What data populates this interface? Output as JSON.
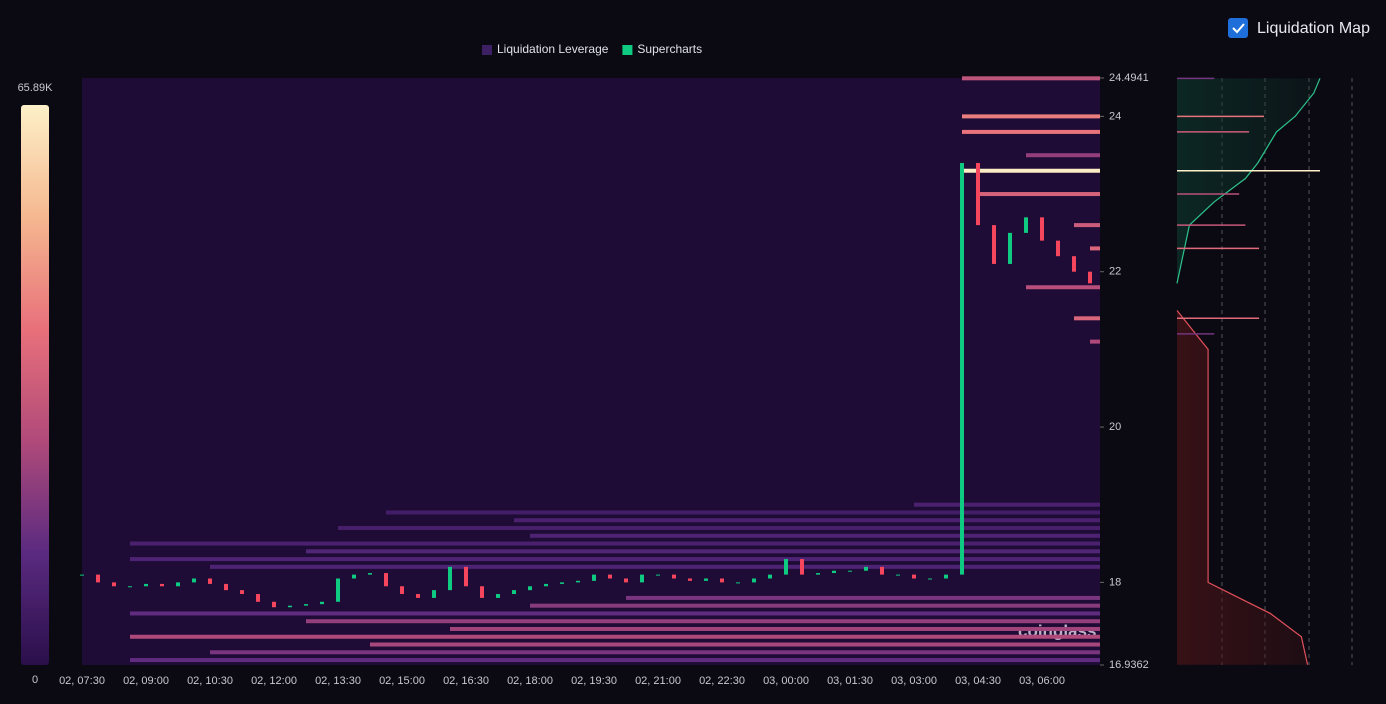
{
  "chart_data": {
    "type": "heatmap",
    "toggle": {
      "label": "Liquidation Map",
      "checked": true
    },
    "legend": [
      {
        "name": "Liquidation Leverage",
        "color": "#3d1f63"
      },
      {
        "name": "Supercharts",
        "color": "#0ecb81"
      }
    ],
    "colorbar": {
      "max": {
        "value": 65890,
        "label": "65.89K"
      },
      "min": 0,
      "colors": [
        "#2a0f4a",
        "#5a2a80",
        "#b04a7a",
        "#e8707a",
        "#f5b890",
        "#fdf0c8"
      ]
    },
    "watermark": "coinglass",
    "categories": [
      "02, 07:30",
      null,
      null,
      null,
      "02, 09:00",
      null,
      null,
      null,
      "02, 10:30",
      null,
      null,
      null,
      "02, 12:00",
      null,
      null,
      null,
      "02, 13:30",
      null,
      null,
      null,
      "02, 15:00",
      null,
      null,
      null,
      "02, 16:30",
      null,
      null,
      null,
      "02, 18:00",
      null,
      null,
      null,
      "02, 19:30",
      null,
      null,
      null,
      "02, 21:00",
      null,
      null,
      null,
      "02, 22:30",
      null,
      null,
      null,
      "03, 00:00",
      null,
      null,
      null,
      "03, 01:30",
      null,
      null,
      null,
      "03, 03:00",
      null,
      null,
      null,
      "03, 04:30",
      null,
      null,
      null,
      "03, 06:00",
      null,
      null,
      null
    ],
    "series": [
      {
        "name": "Supercharts",
        "up_color": "#0ecb81",
        "down_color": "#f6465d",
        "values": [
          18.1,
          18.0,
          17.95,
          17.95,
          17.98,
          17.95,
          18.0,
          18.05,
          17.98,
          17.9,
          17.85,
          17.75,
          17.68,
          17.7,
          17.72,
          17.75,
          18.05,
          18.1,
          18.12,
          17.95,
          17.85,
          17.8,
          17.9,
          18.2,
          17.95,
          17.8,
          17.85,
          17.9,
          17.95,
          17.98,
          18.0,
          18.02,
          18.1,
          18.05,
          18.0,
          18.1,
          18.1,
          18.05,
          18.02,
          18.05,
          18.0,
          18.0,
          18.05,
          18.1,
          18.3,
          18.1,
          18.12,
          18.15,
          18.15,
          18.2,
          18.1,
          18.1,
          18.05,
          18.05,
          18.1,
          23.4,
          22.6,
          22.1,
          22.5,
          22.7,
          22.4,
          22.2,
          22.0,
          21.85
        ]
      }
    ],
    "liquidation_levels": [
      {
        "price": 24.49,
        "from": 55,
        "value": 30000
      },
      {
        "price": 24.0,
        "from": 55,
        "value": 42000
      },
      {
        "price": 23.8,
        "from": 55,
        "value": 40000
      },
      {
        "price": 23.3,
        "from": 55,
        "value": 65000
      },
      {
        "price": 23.5,
        "from": 59,
        "value": 22000
      },
      {
        "price": 23.0,
        "from": 56,
        "value": 35000
      },
      {
        "price": 22.6,
        "from": 62,
        "value": 33000
      },
      {
        "price": 22.3,
        "from": 63,
        "value": 36000
      },
      {
        "price": 21.8,
        "from": 59,
        "value": 28000
      },
      {
        "price": 21.4,
        "from": 62,
        "value": 36000
      },
      {
        "price": 21.1,
        "from": 63,
        "value": 26000
      },
      {
        "price": 19.0,
        "from": 52,
        "value": 9000
      },
      {
        "price": 18.9,
        "from": 19,
        "value": 7000
      },
      {
        "price": 18.8,
        "from": 27,
        "value": 9000
      },
      {
        "price": 18.7,
        "from": 16,
        "value": 8000
      },
      {
        "price": 18.6,
        "from": 28,
        "value": 10000
      },
      {
        "price": 18.5,
        "from": 3,
        "value": 9000
      },
      {
        "price": 18.4,
        "from": 14,
        "value": 11000
      },
      {
        "price": 18.3,
        "from": 3,
        "value": 10000
      },
      {
        "price": 18.2,
        "from": 8,
        "value": 10000
      },
      {
        "price": 17.8,
        "from": 34,
        "value": 18000
      },
      {
        "price": 17.7,
        "from": 28,
        "value": 20000
      },
      {
        "price": 17.6,
        "from": 3,
        "value": 14000
      },
      {
        "price": 17.5,
        "from": 14,
        "value": 22000
      },
      {
        "price": 17.4,
        "from": 23,
        "value": 24000
      },
      {
        "price": 17.3,
        "from": 3,
        "value": 26000
      },
      {
        "price": 17.2,
        "from": 18,
        "value": 25000
      },
      {
        "price": 17.1,
        "from": 8,
        "value": 18000
      },
      {
        "price": 17.0,
        "from": 3,
        "value": 14000
      }
    ],
    "ylim": [
      16.9362,
      24.4941
    ],
    "yticks": [
      16.9362,
      18,
      20,
      22,
      24,
      24.4941
    ],
    "map": {
      "xlim": [
        0,
        115000
      ],
      "short_cumulative": {
        "price": [
          21.85,
          22.6,
          22.9,
          23.2,
          23.4,
          23.8,
          24.0,
          24.3,
          24.49
        ],
        "values": [
          0,
          10000,
          30000,
          55000,
          65000,
          80000,
          95000,
          110000,
          115000
        ],
        "color": "#2ec48d"
      },
      "long_cumulative": {
        "price": [
          21.5,
          21.2,
          21.0,
          18.0,
          17.8,
          17.6,
          17.3,
          16.94
        ],
        "values": [
          0,
          15000,
          25000,
          25000,
          50000,
          75000,
          100000,
          105000
        ],
        "color": "#e0505a"
      },
      "bars": {
        "price": [
          24.49,
          24.0,
          23.8,
          23.3,
          23.0,
          22.6,
          22.3,
          21.4,
          21.2
        ],
        "values": [
          30000,
          70000,
          58000,
          115000,
          50000,
          55000,
          66000,
          66000,
          30000
        ]
      }
    }
  }
}
